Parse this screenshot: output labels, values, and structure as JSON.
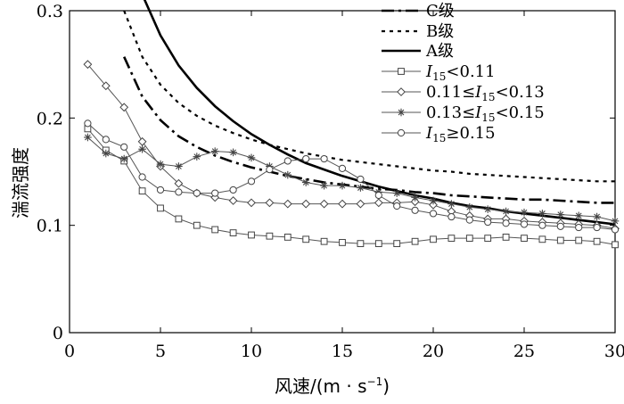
{
  "chart_data": {
    "type": "line",
    "xlabel": "风速/(m · s",
    "xlabel_sup": "−1",
    "xlabel_close": ")",
    "ylabel": "湍流强度",
    "xlim": [
      0,
      30
    ],
    "ylim": [
      0,
      0.3
    ],
    "xticks": [
      "0",
      "5",
      "10",
      "15",
      "20",
      "25",
      "30"
    ],
    "yticks": [
      "0",
      "0.1",
      "0.2",
      "0.3"
    ],
    "legend_position": "top-right",
    "grid": false,
    "reference_curves": [
      {
        "name": "C级",
        "style": "dash-dot",
        "x": [
          3,
          4,
          5,
          6,
          7,
          8,
          9,
          10,
          11,
          12,
          13,
          14,
          15,
          16,
          17,
          18,
          19,
          20,
          21,
          22,
          23,
          24,
          25,
          26,
          27,
          28,
          29,
          30
        ],
        "y": [
          0.257,
          0.22,
          0.198,
          0.183,
          0.173,
          0.165,
          0.159,
          0.154,
          0.15,
          0.146,
          0.143,
          0.14,
          0.138,
          0.136,
          0.134,
          0.133,
          0.131,
          0.13,
          0.128,
          0.127,
          0.126,
          0.125,
          0.124,
          0.124,
          0.123,
          0.122,
          0.121,
          0.121
        ]
      },
      {
        "name": "B级",
        "style": "dotted",
        "x": [
          3,
          4,
          5,
          6,
          7,
          8,
          9,
          10,
          11,
          12,
          13,
          14,
          15,
          16,
          17,
          18,
          19,
          20,
          21,
          22,
          23,
          24,
          25,
          26,
          27,
          28,
          29,
          30
        ],
        "y": [
          0.3,
          0.257,
          0.231,
          0.214,
          0.202,
          0.193,
          0.186,
          0.18,
          0.175,
          0.171,
          0.167,
          0.164,
          0.161,
          0.159,
          0.157,
          0.155,
          0.153,
          0.151,
          0.15,
          0.148,
          0.147,
          0.146,
          0.145,
          0.144,
          0.143,
          0.142,
          0.141,
          0.141
        ]
      },
      {
        "name": "A级",
        "style": "solid-thick",
        "x": [
          4,
          5,
          6,
          7,
          8,
          9,
          10,
          11,
          12,
          13,
          14,
          15,
          16,
          17,
          18,
          19,
          20,
          21,
          22,
          23,
          24,
          25,
          26,
          27,
          28,
          29,
          30
        ],
        "y": [
          0.315,
          0.277,
          0.249,
          0.228,
          0.211,
          0.197,
          0.185,
          0.175,
          0.166,
          0.158,
          0.152,
          0.146,
          0.141,
          0.136,
          0.132,
          0.128,
          0.125,
          0.121,
          0.118,
          0.116,
          0.113,
          0.111,
          0.109,
          0.107,
          0.105,
          0.103,
          0.101
        ]
      }
    ],
    "series": [
      {
        "name": "I15<0.11",
        "label_base": "I",
        "label_sub": "15",
        "label_tail": "<0.11",
        "label_tail_prefix": "",
        "marker": "square",
        "x": [
          1,
          2,
          3,
          4,
          5,
          6,
          7,
          8,
          9,
          10,
          11,
          12,
          13,
          14,
          15,
          16,
          17,
          18,
          19,
          20,
          21,
          22,
          23,
          24,
          25,
          26,
          27,
          28,
          29,
          30
        ],
        "y": [
          0.19,
          0.17,
          0.16,
          0.132,
          0.116,
          0.106,
          0.1,
          0.096,
          0.093,
          0.091,
          0.09,
          0.089,
          0.087,
          0.085,
          0.084,
          0.083,
          0.083,
          0.083,
          0.085,
          0.087,
          0.088,
          0.088,
          0.088,
          0.089,
          0.088,
          0.087,
          0.086,
          0.086,
          0.085,
          0.082
        ]
      },
      {
        "name": "0.11≤I15<0.13",
        "label_prefix": "0.11≤",
        "label_base": "I",
        "label_sub": "15",
        "label_tail": "<0.13",
        "marker": "diamond",
        "x": [
          1,
          2,
          3,
          4,
          5,
          6,
          7,
          8,
          9,
          10,
          11,
          12,
          13,
          14,
          15,
          16,
          17,
          18,
          19,
          20,
          21,
          22,
          23,
          24,
          25,
          26,
          27,
          28,
          29,
          30
        ],
        "y": [
          0.25,
          0.23,
          0.21,
          0.178,
          0.155,
          0.139,
          0.13,
          0.126,
          0.123,
          0.121,
          0.121,
          0.12,
          0.12,
          0.12,
          0.12,
          0.12,
          0.121,
          0.121,
          0.122,
          0.119,
          0.113,
          0.109,
          0.106,
          0.106,
          0.104,
          0.103,
          0.102,
          0.101,
          0.1,
          0.097
        ]
      },
      {
        "name": "0.13≤I15<0.15",
        "label_prefix": "0.13≤",
        "label_base": "I",
        "label_sub": "15",
        "label_tail": "<0.15",
        "marker": "asterisk",
        "x": [
          1,
          2,
          3,
          4,
          5,
          6,
          7,
          8,
          9,
          10,
          11,
          12,
          13,
          14,
          15,
          16,
          17,
          18,
          19,
          20,
          21,
          22,
          23,
          24,
          25,
          26,
          27,
          28,
          29,
          30
        ],
        "y": [
          0.182,
          0.167,
          0.162,
          0.171,
          0.157,
          0.155,
          0.164,
          0.169,
          0.168,
          0.163,
          0.155,
          0.147,
          0.14,
          0.137,
          0.137,
          0.135,
          0.131,
          0.13,
          0.126,
          0.123,
          0.12,
          0.117,
          0.115,
          0.113,
          0.112,
          0.111,
          0.11,
          0.109,
          0.108,
          0.104
        ]
      },
      {
        "name": "I15≥0.15",
        "label_base": "I",
        "label_sub": "15",
        "label_tail": "≥0.15",
        "marker": "circle",
        "x": [
          1,
          2,
          3,
          4,
          5,
          6,
          7,
          8,
          9,
          10,
          11,
          12,
          13,
          14,
          15,
          16,
          17,
          18,
          19,
          20,
          21,
          22,
          23,
          24,
          25,
          26,
          27,
          28,
          29,
          30
        ],
        "y": [
          0.195,
          0.18,
          0.173,
          0.145,
          0.133,
          0.131,
          0.13,
          0.13,
          0.133,
          0.141,
          0.152,
          0.16,
          0.162,
          0.162,
          0.153,
          0.143,
          0.128,
          0.118,
          0.114,
          0.111,
          0.108,
          0.105,
          0.103,
          0.102,
          0.101,
          0.1,
          0.099,
          0.098,
          0.098,
          0.096
        ]
      }
    ]
  }
}
